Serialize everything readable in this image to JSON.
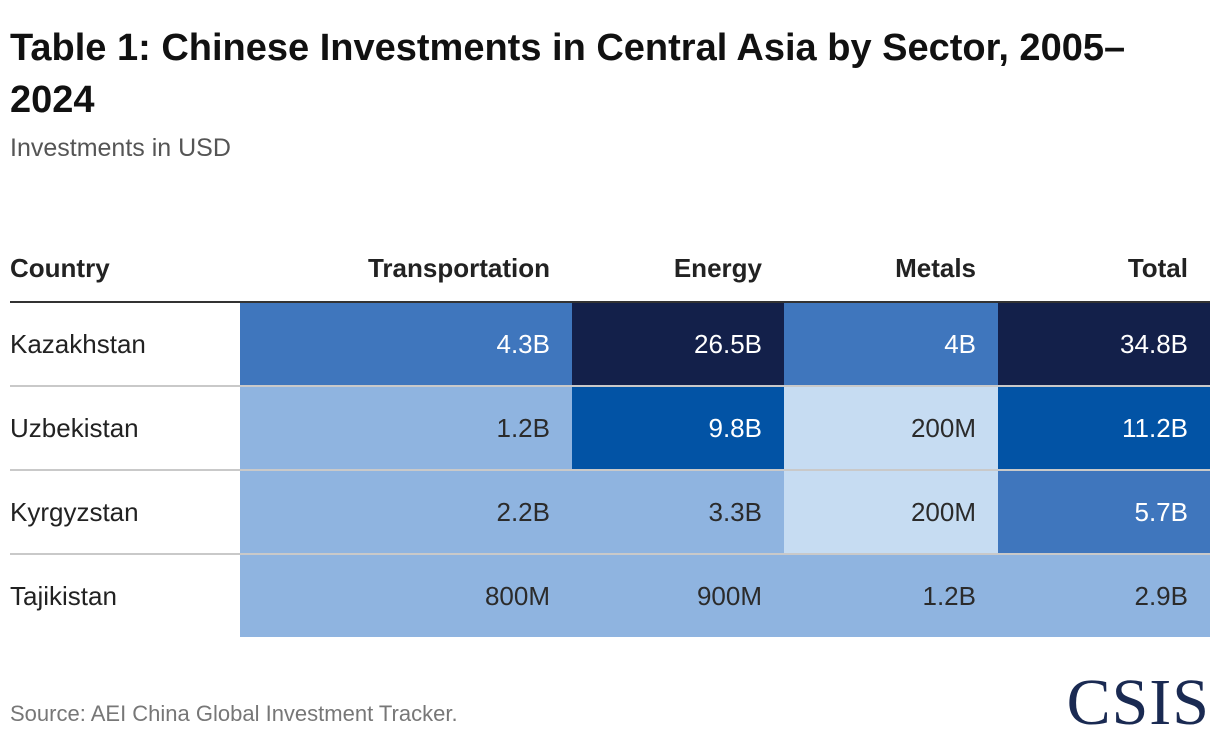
{
  "header": {
    "title": "Table 1: Chinese Investments in Central Asia by Sector, 2005–2024",
    "subtitle": "Investments in USD"
  },
  "footer": {
    "source": "Source: AEI China Global Investment Tracker.",
    "logo": "CSIS"
  },
  "colors": {
    "level_1": "#c6dcf2",
    "level_2": "#8fb4e0",
    "level_3": "#3f76bd",
    "level_4": "#0253a5",
    "level_5": "#13204a"
  },
  "chart_data": {
    "type": "table",
    "title": "Table 1: Chinese Investments in Central Asia by Sector, 2005–2024",
    "subtitle": "Investments in USD",
    "columns": [
      "Country",
      "Transportation",
      "Energy",
      "Metals",
      "Total"
    ],
    "rows": [
      {
        "country": "Kazakhstan",
        "cells": [
          {
            "label": "4.3B",
            "value": 4300000000,
            "level": 3
          },
          {
            "label": "26.5B",
            "value": 26500000000,
            "level": 5
          },
          {
            "label": "4B",
            "value": 4000000000,
            "level": 3
          },
          {
            "label": "34.8B",
            "value": 34800000000,
            "level": 5
          }
        ]
      },
      {
        "country": "Uzbekistan",
        "cells": [
          {
            "label": "1.2B",
            "value": 1200000000,
            "level": 2
          },
          {
            "label": "9.8B",
            "value": 9800000000,
            "level": 4
          },
          {
            "label": "200M",
            "value": 200000000,
            "level": 1
          },
          {
            "label": "11.2B",
            "value": 11200000000,
            "level": 4
          }
        ]
      },
      {
        "country": "Kyrgyzstan",
        "cells": [
          {
            "label": "2.2B",
            "value": 2200000000,
            "level": 2
          },
          {
            "label": "3.3B",
            "value": 3300000000,
            "level": 2
          },
          {
            "label": "200M",
            "value": 200000000,
            "level": 1
          },
          {
            "label": "5.7B",
            "value": 5700000000,
            "level": 3
          }
        ]
      },
      {
        "country": "Tajikistan",
        "cells": [
          {
            "label": "800M",
            "value": 800000000,
            "level": 2
          },
          {
            "label": "900M",
            "value": 900000000,
            "level": 2
          },
          {
            "label": "1.2B",
            "value": 1200000000,
            "level": 2
          },
          {
            "label": "2.9B",
            "value": 2900000000,
            "level": 2
          }
        ]
      }
    ],
    "source": "Source: AEI China Global Investment Tracker."
  }
}
